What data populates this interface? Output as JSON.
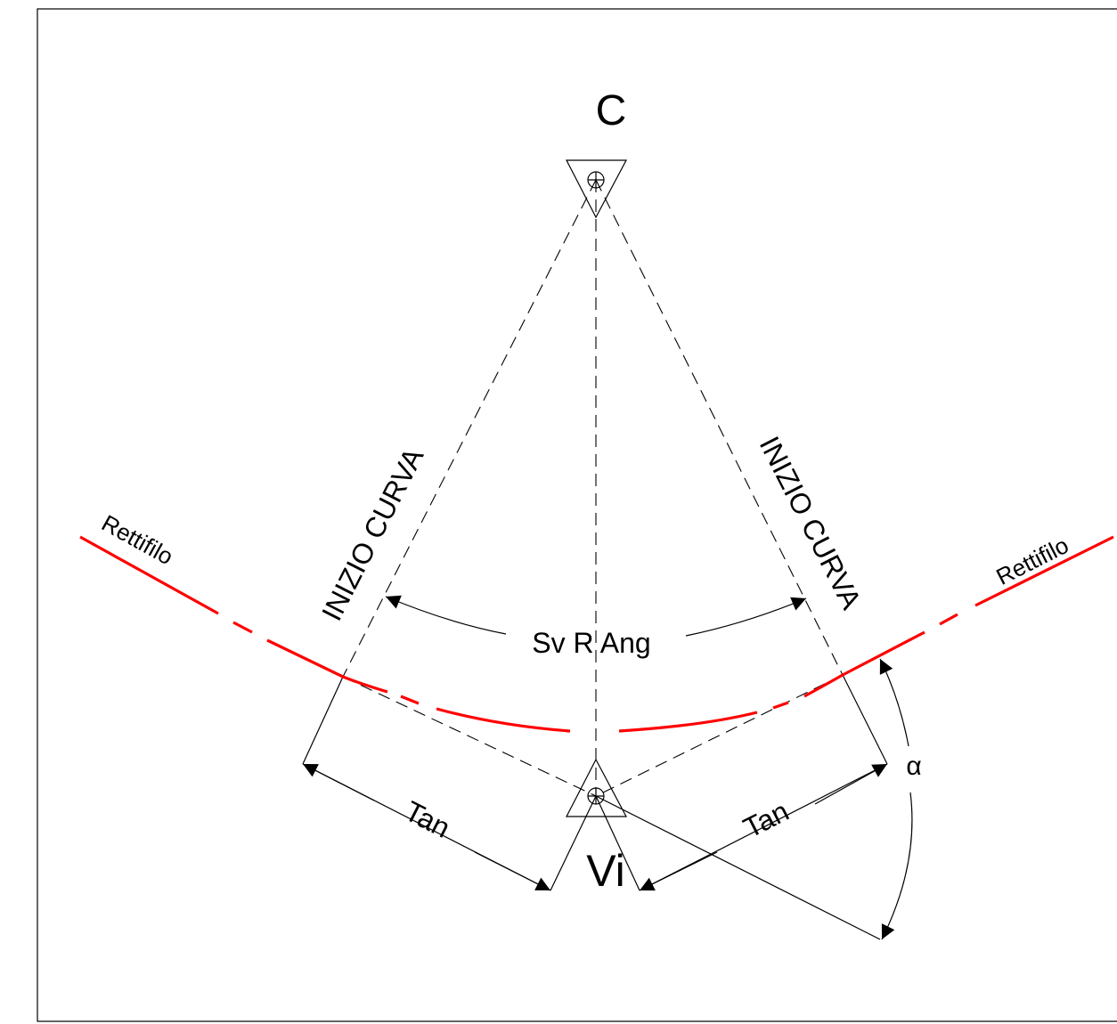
{
  "labels": {
    "center": "C",
    "vertex": "Vi",
    "tangent_start_left": "INIZIO CURVA",
    "tangent_start_right": "INIZIO CURVA",
    "straight_left": "Rettifilo",
    "straight_right": "Rettifilo",
    "angle_dim": "Sv R Ang",
    "tan_left": "Tan",
    "tan_right": "Tan",
    "alpha": "α"
  },
  "colors": {
    "alignment": "#ff0000",
    "linework": "#000000",
    "background": "#ffffff"
  }
}
